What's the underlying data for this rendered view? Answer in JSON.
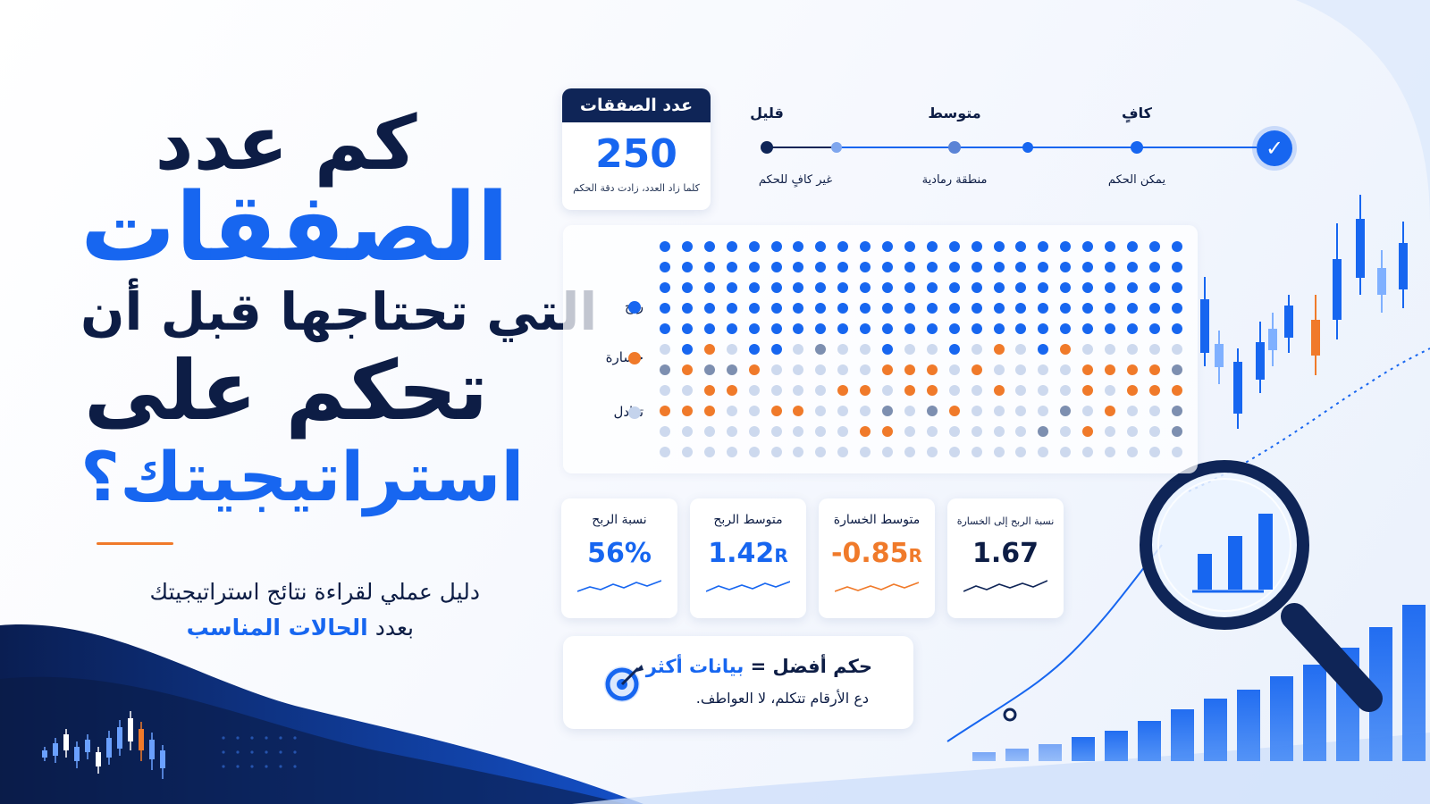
{
  "headline": {
    "line1": "كم عدد",
    "line2": "الصفقات",
    "line3": "التي تحتاجها قبل أن",
    "line4": "تحكم على",
    "line5": "استراتيجيتك؟"
  },
  "subtitle": {
    "line1": "دليل عملي لقراءة نتائج استراتيجيتك",
    "line2_prefix": "بعدد",
    "line2_highlight": "الحالات المناسب"
  },
  "trade_count": {
    "title": "عدد الصفقات",
    "value": "250",
    "note": "كلما زاد العدد، زادت دقة الحكم"
  },
  "sufficiency_scale": {
    "levels": [
      {
        "top": "قليل",
        "bottom": "غير كافٍ للحكم"
      },
      {
        "top": "متوسط",
        "bottom": "منطقة رمادية"
      },
      {
        "top": "كافٍ",
        "bottom": "يمكن الحكم"
      }
    ],
    "check_icon": "check-icon",
    "colors": {
      "dark": "#0f2557",
      "blue": "#1766f0"
    }
  },
  "outcomes": {
    "legend": [
      {
        "label": "ربح",
        "color": "#1766f0"
      },
      {
        "label": "خسارة",
        "color": "#f07a2a"
      },
      {
        "label": "تعادل",
        "color": "#c4d3ec"
      }
    ],
    "grid": [
      "WWWWWWWWWWWWWWWWWWWWWWWW",
      "WWWWWWWWWWWWWWWWWWWWWWWW",
      "WWWWWWWWWWWWWWWWWWWWWWWW",
      "WWWWWWWWWWWWWWWWWWWWWWWW",
      "WWWWWWWWWWWWWWWWWWWWWWWW",
      "NWLNWWNGNNWNNWNLNWLNNNNN",
      "GLGGLNNNNNLLLNLNNNNLLLLG",
      "NNLLNNNNLLNLLNNLNNNLNLLL",
      "LLLNNLLNNNGNGLNNNNGNLNNG",
      "NNNNNNNNNLLNNNNNNGNLNNNG",
      "NNNNNNNNNNNNNNNNNNNNNNNN"
    ]
  },
  "stats": [
    {
      "title": "نسبة الربح",
      "value": "56%",
      "unit": "",
      "color": "#1766f0"
    },
    {
      "title": "متوسط الربح",
      "value": "1.42",
      "unit": "R",
      "color": "#1766f0"
    },
    {
      "title": "متوسط الخسارة",
      "value": "-0.85",
      "unit": "R",
      "color": "#f07a2a"
    },
    {
      "title": "نسبة الربح إلى الخسارة",
      "value": "1.67",
      "unit": "",
      "color": "#0d1d45"
    }
  ],
  "insight": {
    "title_prefix": "حكم أفضل =",
    "title_highlight": "بيانات أكثر",
    "subtitle": "دع الأرقام تتكلم، لا العواطف.",
    "icon": "target-icon"
  },
  "decor": {
    "magnifier_icon": "magnifier-icon",
    "bars_rising": [
      10,
      14,
      19,
      27,
      34,
      45,
      58,
      70,
      80,
      95,
      108,
      127,
      150,
      175,
      205,
      240,
      273,
      305
    ],
    "magnifier_bars": [
      40,
      60,
      85
    ]
  }
}
